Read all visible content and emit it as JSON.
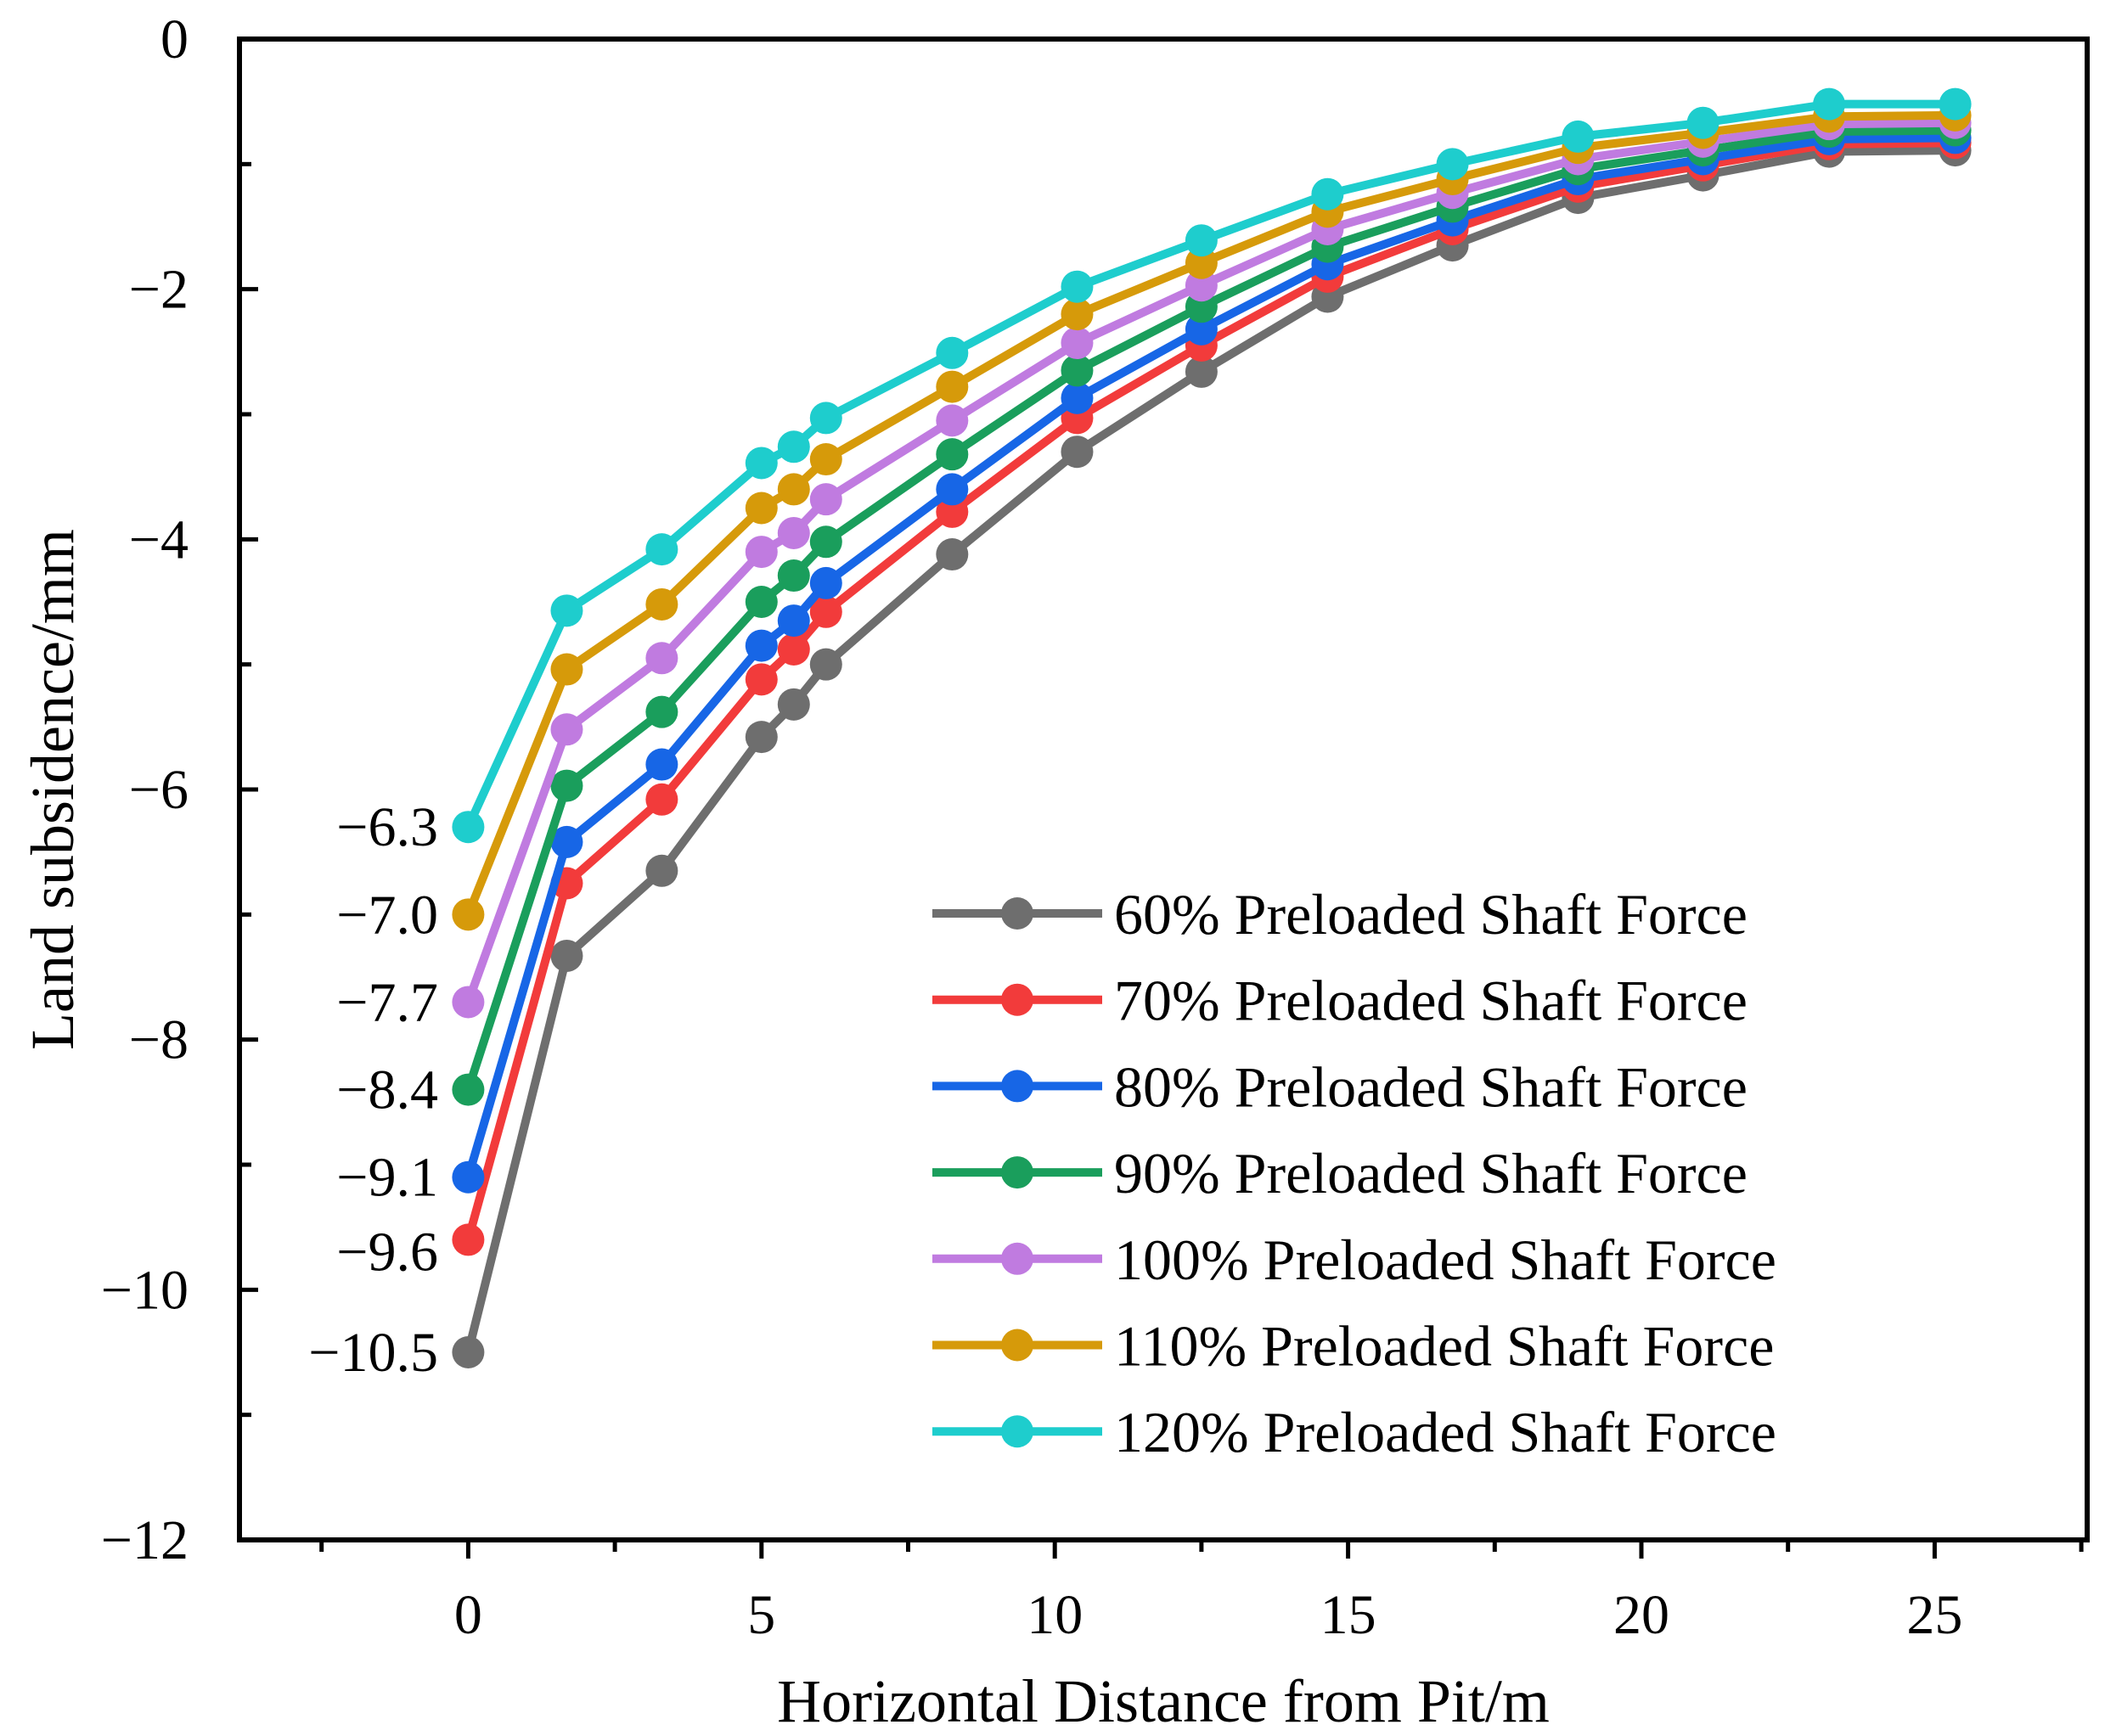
{
  "chart_data": {
    "type": "line",
    "title": "",
    "xlabel": "Horizontal Distance from Pit/m",
    "ylabel": "Land subsidence/mm",
    "xlim": [
      -3.9,
      27.6
    ],
    "ylim": [
      -12,
      0
    ],
    "x_ticks": [
      0,
      5,
      10,
      15,
      20,
      25
    ],
    "y_ticks": [
      0,
      -2,
      -4,
      -6,
      -8,
      -10,
      -12
    ],
    "x_tick_labels": [
      "0",
      "5",
      "10",
      "15",
      "20",
      "25"
    ],
    "y_tick_labels": [
      "0",
      "−2",
      "−4",
      "−6",
      "−8",
      "−10",
      "−12"
    ],
    "x": [
      0,
      1.68,
      3.3,
      5.0,
      5.55,
      6.1,
      8.25,
      10.38,
      12.5,
      14.65,
      16.78,
      18.92,
      21.05,
      23.2,
      25.35
    ],
    "series": [
      {
        "name": "60% Preloaded Shaft Force",
        "color": "#6e6e6e",
        "values": [
          -10.5,
          -7.33,
          -6.65,
          -5.58,
          -5.32,
          -5.0,
          -4.12,
          -3.3,
          -2.66,
          -2.06,
          -1.65,
          -1.27,
          -1.09,
          -0.9,
          -0.89
        ]
      },
      {
        "name": "70% Preloaded Shaft Force",
        "color": "#f23b3b",
        "values": [
          -9.6,
          -6.75,
          -6.08,
          -5.12,
          -4.88,
          -4.58,
          -3.78,
          -3.03,
          -2.45,
          -1.9,
          -1.52,
          -1.18,
          -1.01,
          -0.84,
          -0.83
        ]
      },
      {
        "name": "80% Preloaded Shaft Force",
        "color": "#1766e6",
        "values": [
          -9.1,
          -6.42,
          -5.8,
          -4.85,
          -4.65,
          -4.35,
          -3.6,
          -2.87,
          -2.32,
          -1.8,
          -1.45,
          -1.12,
          -0.96,
          -0.8,
          -0.79
        ]
      },
      {
        "name": "90% Preloaded Shaft Force",
        "color": "#1a9e5c",
        "values": [
          -8.4,
          -5.97,
          -5.38,
          -4.5,
          -4.29,
          -4.02,
          -3.32,
          -2.65,
          -2.14,
          -1.66,
          -1.34,
          -1.04,
          -0.89,
          -0.74,
          -0.73
        ]
      },
      {
        "name": "100% Preloaded Shaft Force",
        "color": "#c07be0",
        "values": [
          -7.7,
          -5.52,
          -4.95,
          -4.1,
          -3.95,
          -3.68,
          -3.05,
          -2.43,
          -1.97,
          -1.52,
          -1.23,
          -0.96,
          -0.82,
          -0.68,
          -0.67
        ]
      },
      {
        "name": "110% Preloaded Shaft Force",
        "color": "#d69a0a",
        "values": [
          -7.0,
          -5.04,
          -4.52,
          -3.75,
          -3.6,
          -3.36,
          -2.78,
          -2.2,
          -1.79,
          -1.38,
          -1.12,
          -0.87,
          -0.75,
          -0.62,
          -0.61
        ]
      },
      {
        "name": "120% Preloaded Shaft Force",
        "color": "#1ecdcd",
        "values": [
          -6.3,
          -4.57,
          -4.08,
          -3.39,
          -3.26,
          -3.03,
          -2.51,
          -1.98,
          -1.61,
          -1.24,
          -1.0,
          -0.78,
          -0.67,
          -0.52,
          -0.52
        ]
      }
    ],
    "annotations": [
      "−6.3",
      "−7.0",
      "−7.7",
      "−8.4",
      "−9.1",
      "−9.6",
      "−10.5"
    ],
    "legend": "bottom-right",
    "grid": false
  }
}
